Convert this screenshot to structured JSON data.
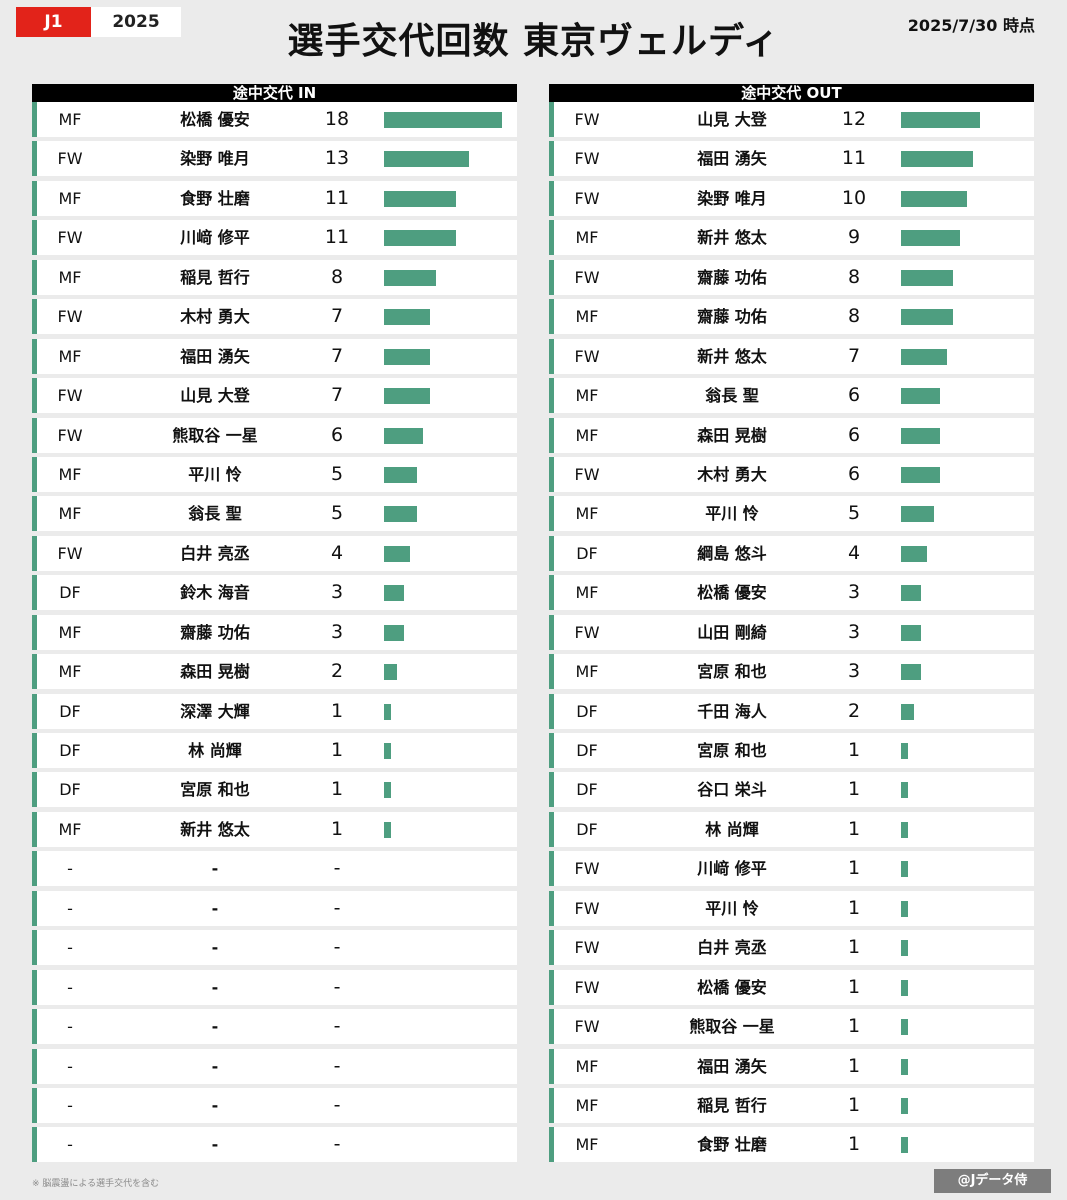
{
  "header": {
    "league": "J1",
    "season": "2025",
    "title": "選手交代回数 東京ヴェルディ",
    "as_of": "2025/7/30 時点"
  },
  "colors": {
    "accent_red": "#e2231a",
    "bar_green": "#4e9e80",
    "header_black": "#000000",
    "background": "#ebebeb"
  },
  "chart_data": [
    {
      "type": "bar",
      "orientation": "horizontal",
      "title": "途中交代 IN",
      "xlim": [
        0,
        18
      ],
      "rows": [
        {
          "position": "MF",
          "name": "松橋 優安",
          "value": 18
        },
        {
          "position": "FW",
          "name": "染野 唯月",
          "value": 13
        },
        {
          "position": "MF",
          "name": "食野 壮磨",
          "value": 11
        },
        {
          "position": "FW",
          "name": "川﨑 修平",
          "value": 11
        },
        {
          "position": "MF",
          "name": "稲見 哲行",
          "value": 8
        },
        {
          "position": "FW",
          "name": "木村 勇大",
          "value": 7
        },
        {
          "position": "MF",
          "name": "福田 湧矢",
          "value": 7
        },
        {
          "position": "FW",
          "name": "山見 大登",
          "value": 7
        },
        {
          "position": "FW",
          "name": "熊取谷 一星",
          "value": 6
        },
        {
          "position": "MF",
          "name": "平川 怜",
          "value": 5
        },
        {
          "position": "MF",
          "name": "翁長 聖",
          "value": 5
        },
        {
          "position": "FW",
          "name": "白井 亮丞",
          "value": 4
        },
        {
          "position": "DF",
          "name": "鈴木 海音",
          "value": 3
        },
        {
          "position": "MF",
          "name": "齋藤 功佑",
          "value": 3
        },
        {
          "position": "MF",
          "name": "森田 晃樹",
          "value": 2
        },
        {
          "position": "DF",
          "name": "深澤 大輝",
          "value": 1
        },
        {
          "position": "DF",
          "name": "林 尚輝",
          "value": 1
        },
        {
          "position": "DF",
          "name": "宮原 和也",
          "value": 1
        },
        {
          "position": "MF",
          "name": "新井 悠太",
          "value": 1
        },
        {
          "position": "-",
          "name": "-",
          "value": "-"
        },
        {
          "position": "-",
          "name": "-",
          "value": "-"
        },
        {
          "position": "-",
          "name": "-",
          "value": "-"
        },
        {
          "position": "-",
          "name": "-",
          "value": "-"
        },
        {
          "position": "-",
          "name": "-",
          "value": "-"
        },
        {
          "position": "-",
          "name": "-",
          "value": "-"
        },
        {
          "position": "-",
          "name": "-",
          "value": "-"
        },
        {
          "position": "-",
          "name": "-",
          "value": "-"
        }
      ]
    },
    {
      "type": "bar",
      "orientation": "horizontal",
      "title": "途中交代 OUT",
      "xlim": [
        0,
        18
      ],
      "rows": [
        {
          "position": "FW",
          "name": "山見 大登",
          "value": 12
        },
        {
          "position": "FW",
          "name": "福田 湧矢",
          "value": 11
        },
        {
          "position": "FW",
          "name": "染野 唯月",
          "value": 10
        },
        {
          "position": "MF",
          "name": "新井 悠太",
          "value": 9
        },
        {
          "position": "FW",
          "name": "齋藤 功佑",
          "value": 8
        },
        {
          "position": "MF",
          "name": "齋藤 功佑",
          "value": 8
        },
        {
          "position": "FW",
          "name": "新井 悠太",
          "value": 7
        },
        {
          "position": "MF",
          "name": "翁長 聖",
          "value": 6
        },
        {
          "position": "MF",
          "name": "森田 晃樹",
          "value": 6
        },
        {
          "position": "FW",
          "name": "木村 勇大",
          "value": 6
        },
        {
          "position": "MF",
          "name": "平川 怜",
          "value": 5
        },
        {
          "position": "DF",
          "name": "綱島 悠斗",
          "value": 4
        },
        {
          "position": "MF",
          "name": "松橋 優安",
          "value": 3
        },
        {
          "position": "FW",
          "name": "山田 剛綺",
          "value": 3
        },
        {
          "position": "MF",
          "name": "宮原 和也",
          "value": 3
        },
        {
          "position": "DF",
          "name": "千田 海人",
          "value": 2
        },
        {
          "position": "DF",
          "name": "宮原 和也",
          "value": 1
        },
        {
          "position": "DF",
          "name": "谷口 栄斗",
          "value": 1
        },
        {
          "position": "DF",
          "name": "林 尚輝",
          "value": 1
        },
        {
          "position": "FW",
          "name": "川﨑 修平",
          "value": 1
        },
        {
          "position": "FW",
          "name": "平川 怜",
          "value": 1
        },
        {
          "position": "FW",
          "name": "白井 亮丞",
          "value": 1
        },
        {
          "position": "FW",
          "name": "松橋 優安",
          "value": 1
        },
        {
          "position": "FW",
          "name": "熊取谷 一星",
          "value": 1
        },
        {
          "position": "MF",
          "name": "福田 湧矢",
          "value": 1
        },
        {
          "position": "MF",
          "name": "稲見 哲行",
          "value": 1
        },
        {
          "position": "MF",
          "name": "食野 壮磨",
          "value": 1
        }
      ]
    }
  ],
  "footer": {
    "note": "※ 脳震盪による選手交代を含む",
    "credit": "@Jデータ侍"
  }
}
